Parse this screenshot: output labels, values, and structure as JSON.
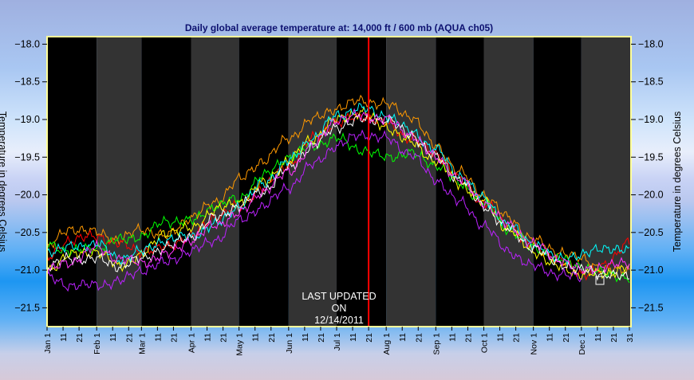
{
  "chart_data": {
    "type": "line",
    "title": "Daily global average temperature at: 14,000 ft / 600 mb (AQUA ch05)",
    "ylabel": "Temperature in degrees Celsius",
    "ylim": [
      -21.75,
      -17.9
    ],
    "yticks": [
      -18.0,
      -18.5,
      -19.0,
      -19.5,
      -20.0,
      -20.5,
      -21.0,
      -21.5
    ],
    "ytick_labels": [
      "−18.0",
      "−18.5",
      "−19.0",
      "−19.5",
      "−20.0",
      "−20.5",
      "−21.0",
      "−21.5"
    ],
    "x_domain_days": [
      1,
      366
    ],
    "month_ticks": [
      {
        "label": "Jan 1",
        "day": 1
      },
      {
        "label": "11",
        "day": 11
      },
      {
        "label": "21",
        "day": 21
      },
      {
        "label": "Feb 1",
        "day": 32
      },
      {
        "label": "11",
        "day": 42
      },
      {
        "label": "21",
        "day": 52
      },
      {
        "label": "Mar 1",
        "day": 60
      },
      {
        "label": "11",
        "day": 70
      },
      {
        "label": "21",
        "day": 80
      },
      {
        "label": "Apr 1",
        "day": 91
      },
      {
        "label": "11",
        "day": 101
      },
      {
        "label": "21",
        "day": 111
      },
      {
        "label": "May 1",
        "day": 121
      },
      {
        "label": "11",
        "day": 131
      },
      {
        "label": "21",
        "day": 141
      },
      {
        "label": "Jun 1",
        "day": 152
      },
      {
        "label": "11",
        "day": 162
      },
      {
        "label": "21",
        "day": 172
      },
      {
        "label": "Jul 1",
        "day": 182
      },
      {
        "label": "11",
        "day": 192
      },
      {
        "label": "21",
        "day": 202
      },
      {
        "label": "Aug 1",
        "day": 213
      },
      {
        "label": "11",
        "day": 223
      },
      {
        "label": "21",
        "day": 233
      },
      {
        "label": "Sep 1",
        "day": 244
      },
      {
        "label": "11",
        "day": 254
      },
      {
        "label": "21",
        "day": 264
      },
      {
        "label": "Oct 1",
        "day": 274
      },
      {
        "label": "11",
        "day": 284
      },
      {
        "label": "21",
        "day": 294
      },
      {
        "label": "Nov 1",
        "day": 305
      },
      {
        "label": "11",
        "day": 315
      },
      {
        "label": "21",
        "day": 325
      },
      {
        "label": "Dec 1",
        "day": 335
      },
      {
        "label": "11",
        "day": 345
      },
      {
        "label": "21",
        "day": 355
      },
      {
        "label": "31",
        "day": 365
      }
    ],
    "month_start_days": [
      1,
      32,
      60,
      91,
      121,
      152,
      182,
      213,
      244,
      274,
      305,
      335,
      366
    ],
    "current_day_marker": 202,
    "annotation": [
      "LAST UPDATED",
      "ON",
      "12/14/2011"
    ],
    "series_keypoints_days": [
      1,
      15,
      32,
      46,
      60,
      75,
      91,
      106,
      121,
      136,
      152,
      167,
      182,
      197,
      213,
      228,
      244,
      259,
      274,
      289,
      305,
      320,
      335,
      350,
      365
    ],
    "series": [
      {
        "color": "#ff9900",
        "values": [
          -20.7,
          -20.45,
          -20.5,
          -20.6,
          -20.45,
          -20.55,
          -20.3,
          -20.1,
          -19.8,
          -19.55,
          -19.25,
          -19.0,
          -18.85,
          -18.75,
          -18.8,
          -18.95,
          -19.35,
          -19.7,
          -20.0,
          -20.3,
          -20.6,
          -20.75,
          -20.85,
          -21.0,
          -21.0
        ]
      },
      {
        "color": "#ff0000",
        "values": [
          -20.85,
          -20.6,
          -20.55,
          -20.65,
          -20.75,
          -20.7,
          -20.55,
          -20.3,
          -20.15,
          -19.9,
          -19.6,
          -19.25,
          -19.05,
          -18.95,
          -19.05,
          -19.25,
          -19.45,
          -19.8,
          -20.1,
          -20.4,
          -20.7,
          -20.85,
          -21.05,
          -20.95,
          -20.6
        ]
      },
      {
        "color": "#00ff00",
        "values": [
          -20.65,
          -20.75,
          -20.7,
          -20.6,
          -20.55,
          -20.35,
          -20.35,
          -20.15,
          -20.05,
          -19.75,
          -19.5,
          -19.35,
          -19.25,
          -19.4,
          -19.5,
          -19.45,
          -19.6,
          -19.85,
          -20.1,
          -20.45,
          -20.7,
          -20.85,
          -20.95,
          -21.05,
          -21.1
        ]
      },
      {
        "color": "#ffff00",
        "values": [
          -21.0,
          -20.8,
          -20.75,
          -20.95,
          -20.8,
          -20.5,
          -20.45,
          -20.2,
          -20.1,
          -19.85,
          -19.55,
          -19.25,
          -19.0,
          -18.9,
          -19.1,
          -19.3,
          -19.55,
          -19.85,
          -20.1,
          -20.45,
          -20.75,
          -20.95,
          -21.05,
          -21.05,
          -20.95
        ]
      },
      {
        "color": "#00ffff",
        "values": [
          -20.75,
          -20.7,
          -20.65,
          -20.85,
          -20.75,
          -20.6,
          -20.55,
          -20.4,
          -20.15,
          -19.85,
          -19.55,
          -19.25,
          -18.95,
          -18.85,
          -18.95,
          -19.15,
          -19.4,
          -19.75,
          -20.05,
          -20.4,
          -20.65,
          -20.85,
          -20.8,
          -20.7,
          -20.75
        ]
      },
      {
        "color": "#ffffff",
        "values": [
          -20.95,
          -20.85,
          -20.85,
          -20.95,
          -20.85,
          -20.7,
          -20.55,
          -20.3,
          -20.15,
          -19.95,
          -19.65,
          -19.35,
          -19.1,
          -19.0,
          -19.0,
          -19.2,
          -19.5,
          -19.8,
          -20.15,
          -20.45,
          -20.7,
          -20.9,
          -21.0,
          -21.05,
          -21.1
        ]
      },
      {
        "color": "#ff33ff",
        "values": [
          -21.0,
          -20.9,
          -20.7,
          -20.85,
          -20.9,
          -20.8,
          -20.6,
          -20.4,
          -20.25,
          -19.95,
          -19.7,
          -19.35,
          -19.0,
          -18.95,
          -19.0,
          -19.2,
          -19.5,
          -19.8,
          -20.1,
          -20.4,
          -20.65,
          -20.85,
          -21.0,
          -20.95,
          -20.9
        ]
      },
      {
        "color": "#bb22ff",
        "values": [
          -21.1,
          -21.2,
          -21.2,
          -21.15,
          -21.0,
          -20.9,
          -20.75,
          -20.6,
          -20.35,
          -20.15,
          -19.9,
          -19.6,
          -19.35,
          -19.2,
          -19.25,
          -19.45,
          -19.8,
          -20.1,
          -20.4,
          -20.75,
          -20.95,
          -21.05,
          -21.1,
          null,
          null
        ]
      }
    ]
  },
  "colors": {
    "plot_background": "#000000",
    "alternate_month_band": "#333333",
    "plot_border": "#ffff99",
    "current_day_line": "#ff0000",
    "title_text": "#0d1170"
  }
}
